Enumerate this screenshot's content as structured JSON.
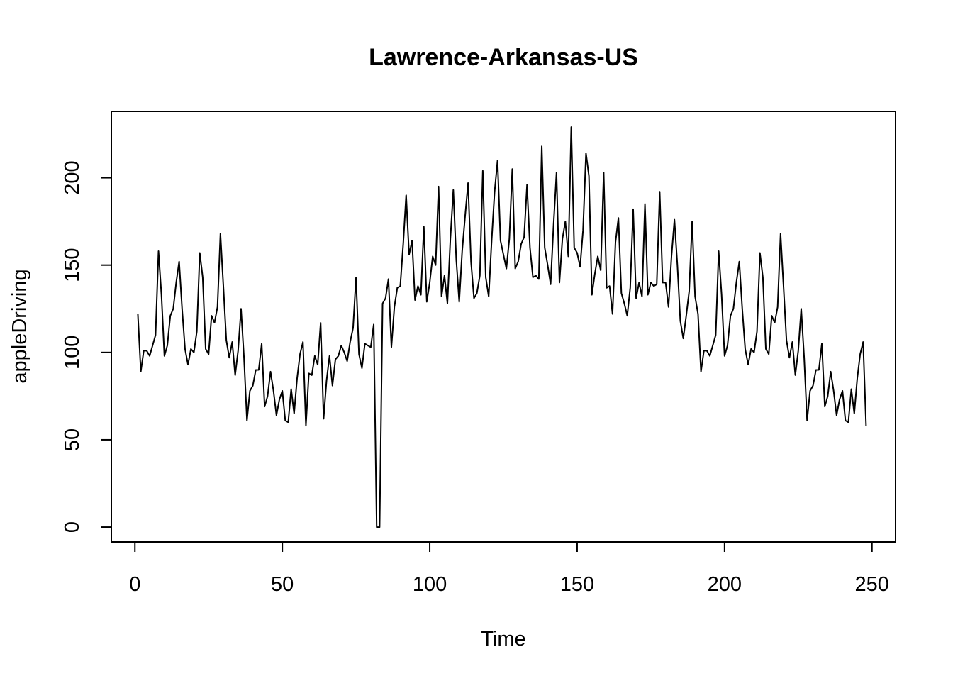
{
  "chart_data": {
    "type": "line",
    "title": "Lawrence-Arkansas-US",
    "xlabel": "Time",
    "ylabel": "appleDriving",
    "xlim": [
      -8,
      258
    ],
    "ylim": [
      -8.5,
      238
    ],
    "x_ticks": [
      0,
      50,
      100,
      150,
      200,
      250
    ],
    "y_ticks": [
      0,
      50,
      100,
      150,
      200
    ],
    "x_tick_labels": [
      "0",
      "50",
      "100",
      "150",
      "200",
      "250"
    ],
    "y_tick_labels": [
      "0",
      "50",
      "100",
      "150",
      "200"
    ],
    "line_color": "#000000",
    "grid": false,
    "x": [
      1,
      2,
      3,
      4,
      5,
      6,
      7,
      8,
      9,
      10,
      11,
      12,
      13,
      14,
      15,
      16,
      17,
      18,
      19,
      20,
      21,
      22,
      23,
      24,
      25,
      26,
      27,
      28,
      29,
      30,
      31,
      32,
      33,
      34,
      35,
      36,
      37,
      38,
      39,
      40,
      41,
      42,
      43,
      44,
      45,
      46,
      47,
      48,
      49,
      50,
      51,
      52,
      53,
      54,
      55,
      56,
      57,
      58,
      59,
      60,
      61,
      62,
      63,
      64,
      65,
      66,
      67,
      68,
      69,
      70,
      71,
      72,
      73,
      74,
      75,
      76,
      77,
      78,
      79,
      80,
      81,
      82,
      83,
      84,
      85,
      86,
      87,
      88,
      89,
      90,
      91,
      92,
      93,
      94,
      95,
      96,
      97,
      98,
      99,
      100,
      101,
      102,
      103,
      104,
      105,
      106,
      107,
      108,
      109,
      110,
      111,
      112,
      113,
      114,
      115,
      116,
      117,
      118,
      119,
      120,
      121,
      122,
      123,
      124,
      125,
      126,
      127,
      128,
      129,
      130,
      131,
      132,
      133,
      134,
      135,
      136,
      137,
      138,
      139,
      140,
      141,
      142,
      143,
      144,
      145,
      146,
      147,
      148,
      149,
      150,
      151,
      152,
      153,
      154,
      155,
      156,
      157,
      158,
      159,
      160,
      161,
      162,
      163,
      164,
      165,
      166,
      167,
      168,
      169,
      170,
      171,
      172,
      173,
      174,
      175,
      176,
      177,
      178,
      179,
      180,
      181,
      182,
      183,
      184,
      185,
      186,
      187,
      188,
      189,
      190,
      191,
      192,
      193,
      194,
      195,
      196,
      197,
      198,
      199,
      200,
      201,
      202,
      203,
      204,
      205,
      206,
      207,
      208,
      209,
      210,
      211,
      212,
      213,
      214,
      215,
      216,
      217,
      218,
      219,
      220,
      221,
      222,
      223,
      224,
      225,
      226,
      227,
      228,
      229,
      230,
      231,
      232,
      233,
      234,
      235,
      236,
      237,
      238,
      239,
      240,
      241,
      242,
      243,
      244,
      245,
      246,
      247,
      248
    ],
    "values": [
      122,
      89,
      101,
      101,
      98,
      104,
      110,
      158,
      133,
      98,
      104,
      121,
      125,
      140,
      152,
      125,
      102,
      93,
      102,
      100,
      112,
      157,
      143,
      102,
      99,
      121,
      117,
      126,
      168,
      138,
      107,
      97,
      106,
      87,
      101,
      125,
      97,
      61,
      78,
      81,
      90,
      90,
      105,
      69,
      75,
      89,
      78,
      64,
      73,
      78,
      61,
      60,
      79,
      65,
      85,
      99,
      106,
      58,
      88,
      87,
      98,
      93,
      117,
      62,
      84,
      98,
      81,
      96,
      98,
      104,
      100,
      95,
      106,
      114,
      143,
      99,
      91,
      105,
      104,
      103,
      116,
      0,
      0,
      128,
      131,
      142,
      103,
      126,
      137,
      138,
      162,
      190,
      156,
      164,
      130,
      138,
      133,
      172,
      129,
      140,
      155,
      150,
      195,
      132,
      144,
      128,
      165,
      193,
      153,
      129,
      158,
      178,
      197,
      152,
      131,
      134,
      144,
      204,
      143,
      132,
      164,
      192,
      210,
      164,
      156,
      148,
      165,
      205,
      148,
      152,
      162,
      166,
      196,
      160,
      143,
      144,
      142,
      218,
      160,
      150,
      139,
      173,
      203,
      140,
      165,
      175,
      155,
      229,
      160,
      157,
      149,
      170,
      214,
      201,
      133,
      145,
      155,
      147,
      203,
      137,
      138,
      122,
      163,
      177,
      134,
      128,
      121,
      137,
      182,
      131,
      140,
      132,
      185,
      133,
      140,
      138,
      139,
      192,
      140,
      140,
      126,
      155,
      176,
      150,
      118,
      108,
      121,
      135,
      175,
      132,
      122,
      89,
      101,
      101,
      98,
      104,
      110,
      158,
      133,
      98,
      104,
      121,
      125,
      140,
      152,
      125,
      102,
      93,
      102,
      100,
      112,
      157,
      143,
      102,
      99,
      121,
      117,
      126,
      168,
      138,
      107,
      97,
      106,
      87,
      101,
      125,
      97,
      61,
      78,
      81,
      90,
      90,
      105,
      69,
      75,
      89,
      78,
      64,
      73,
      78,
      61,
      60,
      79,
      65,
      85,
      99,
      106,
      58
    ]
  }
}
